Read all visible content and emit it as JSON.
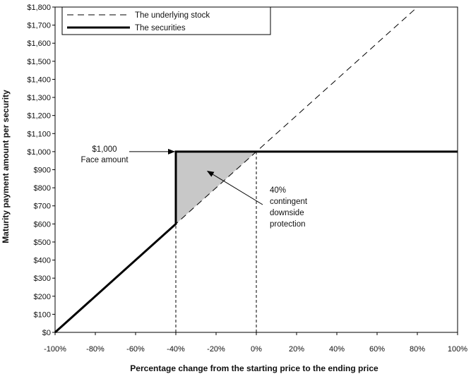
{
  "chart_data": {
    "type": "line",
    "xlabel": "Percentage change from the starting price to the ending price",
    "ylabel": "Maturity  payment amount per security",
    "xlim": [
      -100,
      100
    ],
    "ylim": [
      0,
      1800
    ],
    "x_ticks": [
      -100,
      -80,
      -60,
      -40,
      -20,
      0,
      20,
      40,
      60,
      80,
      100
    ],
    "x_tick_labels": [
      "-100%",
      "-80%",
      "-60%",
      "-40%",
      "-20%",
      "0%",
      "20%",
      "40%",
      "60%",
      "80%",
      "100%"
    ],
    "y_ticks": [
      0,
      100,
      200,
      300,
      400,
      500,
      600,
      700,
      800,
      900,
      1000,
      1100,
      1200,
      1300,
      1400,
      1500,
      1600,
      1700,
      1800
    ],
    "y_tick_labels": [
      "$0",
      "$100",
      "$200",
      "$300",
      "$400",
      "$500",
      "$600",
      "$700",
      "$800",
      "$900",
      "$1,000",
      "$1,100",
      "$1,200",
      "$1,300",
      "$1,400",
      "$1,500",
      "$1,600",
      "$1,700",
      "$1,800"
    ],
    "grid": false,
    "legend_position": "top-left",
    "series": [
      {
        "name": "The underlying stock",
        "style": "dashed",
        "color": "#000000",
        "x": [
          -100,
          80
        ],
        "y": [
          0,
          1800
        ]
      },
      {
        "name": "The securities",
        "style": "solid-thick",
        "color": "#000000",
        "x": [
          -100,
          -40,
          -40,
          100
        ],
        "y": [
          0,
          600,
          1000,
          1000
        ]
      }
    ],
    "shaded_region": {
      "color": "#c8c8c8",
      "x": [
        -40,
        -40,
        0
      ],
      "y": [
        600,
        1000,
        1000
      ]
    },
    "reference_lines": [
      {
        "x": -40,
        "y_from": 0,
        "y_to": 1000,
        "style": "dashed"
      },
      {
        "x": 0,
        "y_from": 0,
        "y_to": 1000,
        "style": "dashed"
      }
    ],
    "annotations": [
      {
        "lines": [
          "$1,000",
          "Face amount"
        ],
        "arrow_to": {
          "x": -40,
          "y": 1000
        }
      },
      {
        "lines": [
          "40%",
          "contingent",
          "downside",
          "protection"
        ],
        "arrow_to": {
          "x": -25,
          "y": 900
        }
      }
    ]
  }
}
